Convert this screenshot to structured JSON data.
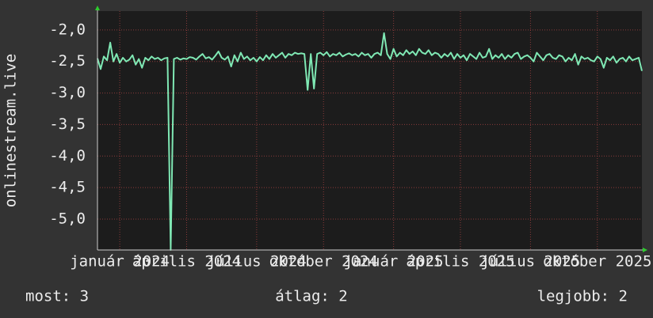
{
  "chart_data": {
    "type": "line",
    "y_label": "onlinestream.live",
    "categories": [
      null,
      null,
      null,
      null,
      null,
      null,
      null,
      "január 2024",
      null,
      null,
      null,
      null,
      null,
      null,
      null,
      null,
      null,
      null,
      null,
      null,
      null,
      null,
      null,
      null,
      null,
      null,
      null,
      null,
      "április 2024",
      null,
      null,
      null,
      null,
      null,
      null,
      null,
      null,
      null,
      null,
      null,
      null,
      null,
      null,
      null,
      null,
      null,
      null,
      null,
      null,
      null,
      "július 2024",
      null,
      null,
      null,
      null,
      null,
      null,
      null,
      null,
      null,
      null,
      null,
      null,
      null,
      null,
      null,
      null,
      null,
      null,
      null,
      null,
      "október 2024",
      null,
      null,
      null,
      null,
      null,
      null,
      null,
      null,
      null,
      null,
      null,
      null,
      null,
      null,
      null,
      null,
      null,
      null,
      null,
      null,
      null,
      "január 2025",
      null,
      null,
      null,
      null,
      null,
      null,
      null,
      null,
      null,
      null,
      null,
      null,
      null,
      null,
      null,
      null,
      null,
      null,
      null,
      null,
      "április 2025",
      null,
      null,
      null,
      null,
      null,
      null,
      null,
      null,
      null,
      null,
      null,
      null,
      null,
      null,
      null,
      null,
      null,
      null,
      null,
      null,
      null,
      "július 2025",
      null,
      null,
      null,
      null,
      null,
      null,
      null,
      null,
      null,
      null,
      null,
      null,
      null,
      null,
      null,
      null,
      null,
      null,
      null,
      null,
      "október 2025",
      null,
      null,
      null,
      null,
      null,
      null,
      null,
      null,
      null,
      null,
      null,
      null,
      null,
      null
    ],
    "series": [
      {
        "color": "#7fe8b4",
        "values": [
          -2.45,
          -2.62,
          -2.42,
          -2.48,
          -2.2,
          -2.5,
          -2.38,
          -2.52,
          -2.44,
          -2.5,
          -2.47,
          -2.4,
          -2.55,
          -2.46,
          -2.6,
          -2.44,
          -2.48,
          -2.42,
          -2.46,
          -2.44,
          -2.48,
          -2.45,
          -2.44,
          -5.49,
          -2.46,
          -2.44,
          -2.47,
          -2.45,
          -2.46,
          -2.43,
          -2.44,
          -2.47,
          -2.42,
          -2.38,
          -2.45,
          -2.43,
          -2.47,
          -2.41,
          -2.34,
          -2.44,
          -2.47,
          -2.42,
          -2.58,
          -2.4,
          -2.5,
          -2.36,
          -2.46,
          -2.42,
          -2.48,
          -2.44,
          -2.5,
          -2.43,
          -2.48,
          -2.4,
          -2.46,
          -2.38,
          -2.44,
          -2.4,
          -2.36,
          -2.44,
          -2.38,
          -2.4,
          -2.36,
          -2.38,
          -2.37,
          -2.38,
          -2.95,
          -2.38,
          -2.93,
          -2.38,
          -2.36,
          -2.4,
          -2.35,
          -2.42,
          -2.38,
          -2.4,
          -2.36,
          -2.42,
          -2.39,
          -2.37,
          -2.4,
          -2.38,
          -2.42,
          -2.36,
          -2.4,
          -2.38,
          -2.44,
          -2.38,
          -2.36,
          -2.4,
          -2.05,
          -2.38,
          -2.46,
          -2.3,
          -2.42,
          -2.36,
          -2.4,
          -2.32,
          -2.38,
          -2.34,
          -2.4,
          -2.3,
          -2.36,
          -2.38,
          -2.32,
          -2.4,
          -2.36,
          -2.38,
          -2.44,
          -2.38,
          -2.42,
          -2.36,
          -2.46,
          -2.38,
          -2.44,
          -2.4,
          -2.48,
          -2.38,
          -2.42,
          -2.46,
          -2.36,
          -2.44,
          -2.42,
          -2.3,
          -2.46,
          -2.4,
          -2.44,
          -2.38,
          -2.46,
          -2.4,
          -2.44,
          -2.38,
          -2.36,
          -2.46,
          -2.42,
          -2.4,
          -2.44,
          -2.5,
          -2.36,
          -2.42,
          -2.48,
          -2.4,
          -2.38,
          -2.44,
          -2.46,
          -2.4,
          -2.42,
          -2.5,
          -2.44,
          -2.48,
          -2.38,
          -2.55,
          -2.42,
          -2.46,
          -2.44,
          -2.48,
          -2.5,
          -2.42,
          -2.46,
          -2.6,
          -2.44,
          -2.48,
          -2.42,
          -2.52,
          -2.46,
          -2.44,
          -2.5,
          -2.42,
          -2.48,
          -2.46,
          -2.44,
          -2.65
        ]
      }
    ],
    "ylim": [
      -5.49,
      -1.7
    ],
    "yticks": [
      {
        "value": -2,
        "label": "-2,0"
      },
      {
        "value": -2.5,
        "label": "-2,5"
      },
      {
        "value": -3,
        "label": "-3,0"
      },
      {
        "value": -3.5,
        "label": "-3,5"
      },
      {
        "value": -4,
        "label": "-4,0"
      },
      {
        "value": -4.5,
        "label": "-4,5"
      },
      {
        "value": -5,
        "label": "-5,0"
      }
    ],
    "grid": true,
    "legend": [
      "most: 3",
      "átlag: 2",
      "legjobb: 2"
    ]
  }
}
